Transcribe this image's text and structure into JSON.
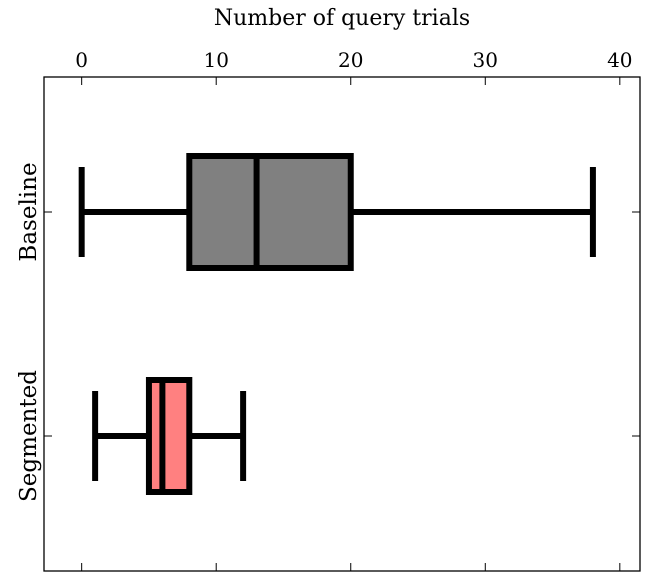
{
  "chart_data": {
    "type": "boxplot",
    "orientation": "horizontal",
    "xlabel": "Number of query trials",
    "xlabel_position": "top",
    "xlim": [
      -2.8,
      41.5
    ],
    "xticks": [
      0,
      10,
      20,
      30,
      40
    ],
    "grid": false,
    "series": [
      {
        "name": "Baseline",
        "min": 0,
        "q1": 8,
        "median": 13,
        "q3": 20,
        "max": 38,
        "color": "#808080"
      },
      {
        "name": "Segmented",
        "min": 1,
        "q1": 5,
        "median": 6,
        "q3": 8,
        "max": 12,
        "color": "#ff8080"
      }
    ]
  }
}
